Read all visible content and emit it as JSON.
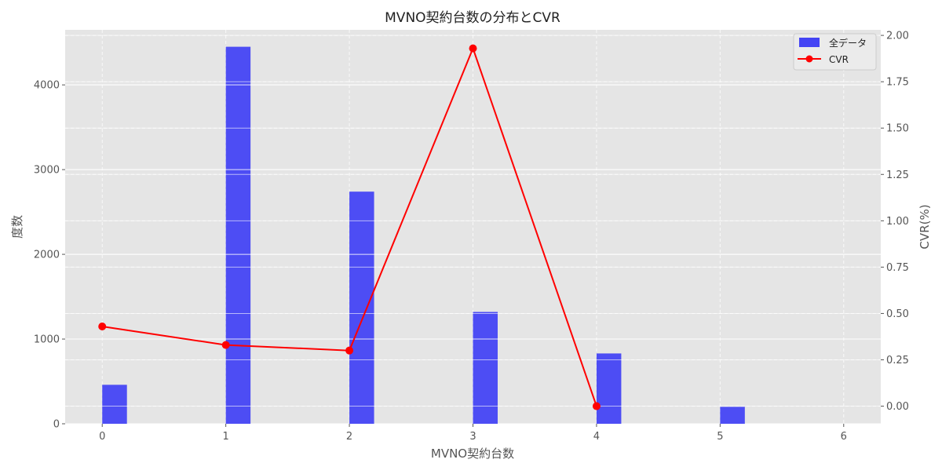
{
  "chart_data": {
    "type": "bar",
    "title": "MVNO契約台数の分布とCVR",
    "xlabel": "MVNO契約台数",
    "ylabel": "度数",
    "y2label": "CVR(%)",
    "x_ticks": [
      "0",
      "1",
      "2",
      "3",
      "4",
      "5",
      "6"
    ],
    "y_ticks": [
      "0",
      "1000",
      "2000",
      "3000",
      "4000"
    ],
    "y2_ticks": [
      "0.00",
      "0.25",
      "0.50",
      "0.75",
      "1.00",
      "1.25",
      "1.50",
      "1.75",
      "2.00"
    ],
    "xlim": [
      -0.3,
      6.3
    ],
    "ylim": [
      0,
      4650
    ],
    "y2lim": [
      -0.095,
      2.03
    ],
    "grid": true,
    "legend_position": "top-right",
    "series": [
      {
        "name": "全データ",
        "type": "bar",
        "axis": "left",
        "color": "#4444f4",
        "x": [
          0,
          1,
          2,
          3,
          4,
          5
        ],
        "values": [
          460,
          4450,
          2740,
          1320,
          830,
          200
        ]
      },
      {
        "name": "CVR",
        "type": "line",
        "axis": "right",
        "color": "#ff0000",
        "marker": "circle",
        "x": [
          0,
          1,
          2,
          3,
          4
        ],
        "values": [
          0.43,
          0.33,
          0.3,
          1.93,
          0.0
        ]
      }
    ]
  }
}
